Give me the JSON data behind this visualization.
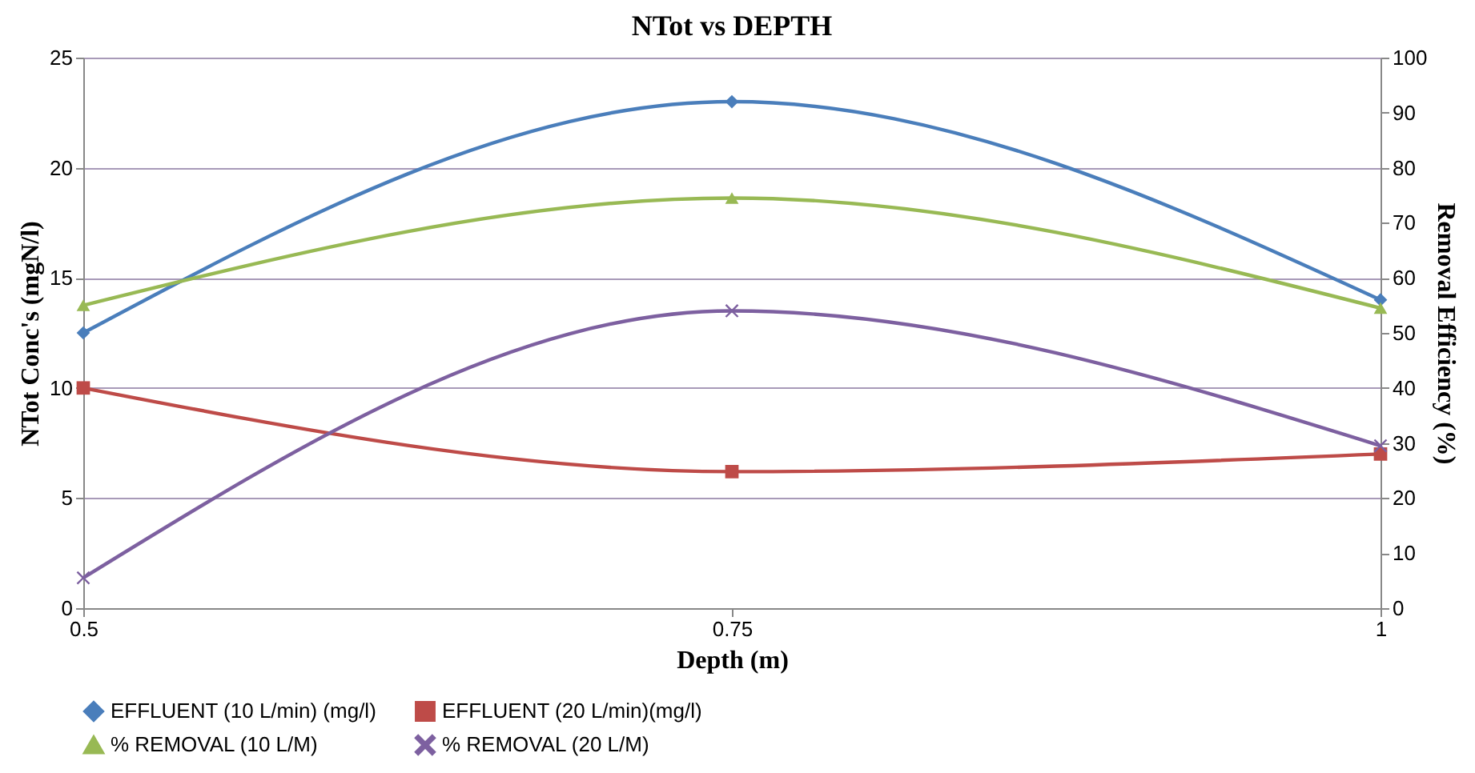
{
  "chart_data": {
    "type": "line",
    "title": "NTot vs DEPTH",
    "xlabel": "Depth (m)",
    "ylabel": "NTot Conc's (mgN/l)",
    "y2label": "Removal Efficiency (%)",
    "x": [
      0.5,
      0.75,
      1
    ],
    "xlim": [
      0.5,
      1
    ],
    "xticks": [
      0.5,
      0.75,
      1
    ],
    "ylim": [
      0,
      25
    ],
    "yticks": [
      0,
      5,
      10,
      15,
      20,
      25
    ],
    "y2lim": [
      0,
      100
    ],
    "y2ticks": [
      0,
      10,
      20,
      30,
      40,
      50,
      60,
      70,
      80,
      90,
      100
    ],
    "grid": "y",
    "legend": "bottom",
    "line_style": "solid",
    "series": [
      {
        "name": "EFFLUENT (10 L/min) (mg/l)",
        "color": "#4a7ebb",
        "marker": "diamond",
        "values": [
          12.5,
          23,
          14
        ]
      },
      {
        "name": "EFFLUENT (20 L/min)(mg/l)",
        "color": "#be4b48",
        "marker": "square",
        "values": [
          10,
          6.2,
          7
        ]
      },
      {
        "name": "% REMOVAL (10 L/M)",
        "color": "#98b954",
        "marker": "triangle",
        "axis": "y2",
        "values": [
          55,
          74.5,
          54.5
        ]
      },
      {
        "name": "% REMOVAL (20 L/M)",
        "color": "#7d60a0",
        "marker": "cross",
        "axis": "y2",
        "values": [
          5.5,
          54,
          29.5
        ]
      }
    ]
  }
}
